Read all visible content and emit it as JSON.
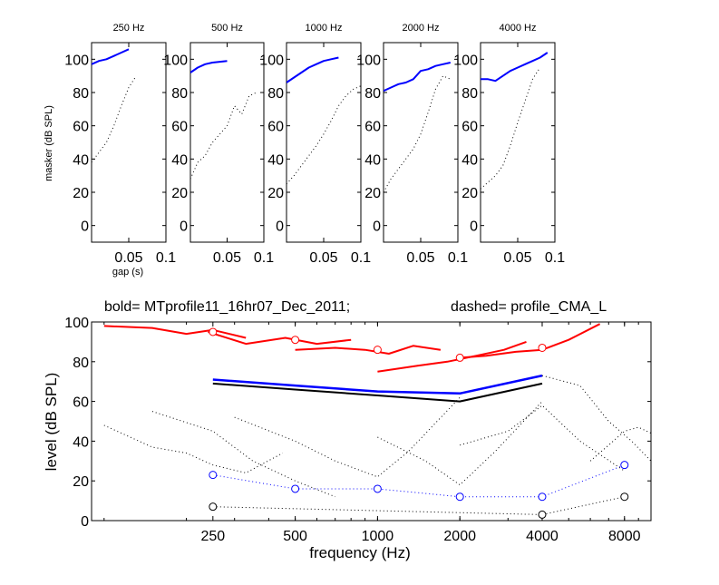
{
  "figure": {
    "top_ylabel": "masker (dB SPL)",
    "top_xlabel": "gap (s)",
    "bottom_title_left": "bold= MTprofile11_16hr07_Dec_2011;",
    "bottom_title_right": "dashed=  profile_CMA_L",
    "bottom_xlabel": "frequency (Hz)",
    "bottom_ylabel": "level (dB SPL)"
  },
  "chart_data": [
    {
      "type": "line",
      "title": "250 Hz",
      "xlabel": "gap (s)",
      "ylabel": "masker (dB SPL)",
      "xlim": [
        0,
        0.1
      ],
      "ylim": [
        -10,
        110
      ],
      "xticks": [
        0.05,
        0.1
      ],
      "xtick_labels": [
        "0.05",
        "0.1"
      ],
      "yticks": [
        0,
        20,
        40,
        60,
        80,
        100
      ],
      "ytick_labels": [
        "0",
        "20",
        "40",
        "60",
        "80",
        "100"
      ],
      "series": [
        {
          "style": "solid",
          "color": "#0000ff",
          "x": [
            0.0,
            0.01,
            0.02,
            0.03,
            0.04,
            0.05
          ],
          "y": [
            97,
            99,
            100,
            102,
            104,
            106
          ]
        },
        {
          "style": "dotted",
          "color": "#000000",
          "x": [
            0.0,
            0.01,
            0.02,
            0.03,
            0.04,
            0.05,
            0.06
          ],
          "y": [
            38,
            44,
            50,
            60,
            72,
            83,
            90
          ]
        }
      ]
    },
    {
      "type": "line",
      "title": "500 Hz",
      "xlim": [
        0,
        0.1
      ],
      "ylim": [
        -10,
        110
      ],
      "xticks": [
        0.05,
        0.1
      ],
      "xtick_labels": [
        "0.05",
        "0.1"
      ],
      "yticks": [
        0,
        20,
        40,
        60,
        80,
        100
      ],
      "ytick_labels": [
        "0",
        "20",
        "40",
        "60",
        "80",
        "100"
      ],
      "series": [
        {
          "style": "solid",
          "color": "#0000ff",
          "x": [
            0.0,
            0.01,
            0.02,
            0.03,
            0.04,
            0.05
          ],
          "y": [
            92,
            95,
            97,
            98,
            98.5,
            99
          ]
        },
        {
          "style": "dotted",
          "color": "#000000",
          "x": [
            0.0,
            0.01,
            0.02,
            0.03,
            0.04,
            0.05,
            0.06,
            0.07,
            0.08,
            0.09
          ],
          "y": [
            28,
            38,
            42,
            50,
            55,
            60,
            72,
            67,
            78,
            80
          ]
        }
      ]
    },
    {
      "type": "line",
      "title": "1000 Hz",
      "xlim": [
        0,
        0.1
      ],
      "ylim": [
        -10,
        110
      ],
      "xticks": [
        0.05,
        0.1
      ],
      "xtick_labels": [
        "0.05",
        "0.1"
      ],
      "yticks": [
        0,
        20,
        40,
        60,
        80,
        100
      ],
      "ytick_labels": [
        "0",
        "20",
        "40",
        "60",
        "80",
        "100"
      ],
      "series": [
        {
          "style": "solid",
          "color": "#0000ff",
          "x": [
            0.0,
            0.01,
            0.02,
            0.03,
            0.04,
            0.05,
            0.06,
            0.07
          ],
          "y": [
            86,
            89,
            92,
            95,
            97,
            99,
            100,
            101
          ]
        },
        {
          "style": "dotted",
          "color": "#000000",
          "x": [
            0.0,
            0.01,
            0.02,
            0.03,
            0.04,
            0.05,
            0.06,
            0.07,
            0.08,
            0.09,
            0.1
          ],
          "y": [
            25,
            30,
            36,
            42,
            48,
            55,
            63,
            72,
            78,
            82,
            84
          ]
        }
      ]
    },
    {
      "type": "line",
      "title": "2000 Hz",
      "xlim": [
        0,
        0.1
      ],
      "ylim": [
        -10,
        110
      ],
      "xticks": [
        0.05,
        0.1
      ],
      "xtick_labels": [
        "0.05",
        "0.1"
      ],
      "yticks": [
        0,
        20,
        40,
        60,
        80,
        100
      ],
      "ytick_labels": [
        "0",
        "20",
        "40",
        "60",
        "80",
        "100"
      ],
      "series": [
        {
          "style": "solid",
          "color": "#0000ff",
          "x": [
            0.0,
            0.01,
            0.02,
            0.03,
            0.04,
            0.05,
            0.06,
            0.07,
            0.08,
            0.09
          ],
          "y": [
            81,
            83,
            85,
            86,
            88,
            93,
            94,
            96,
            97,
            98
          ]
        },
        {
          "style": "dotted",
          "color": "#000000",
          "x": [
            0.0,
            0.01,
            0.02,
            0.03,
            0.04,
            0.05,
            0.06,
            0.07,
            0.08,
            0.09
          ],
          "y": [
            20,
            28,
            34,
            40,
            46,
            55,
            68,
            82,
            90,
            88
          ]
        }
      ]
    },
    {
      "type": "line",
      "title": "4000 Hz",
      "xlim": [
        0,
        0.1
      ],
      "ylim": [
        -10,
        110
      ],
      "xticks": [
        0.05,
        0.1
      ],
      "xtick_labels": [
        "0.05",
        "0.1"
      ],
      "yticks": [
        0,
        20,
        40,
        60,
        80,
        100
      ],
      "ytick_labels": [
        "0",
        "20",
        "40",
        "60",
        "80",
        "100"
      ],
      "series": [
        {
          "style": "solid",
          "color": "#0000ff",
          "x": [
            0.0,
            0.01,
            0.02,
            0.03,
            0.04,
            0.05,
            0.06,
            0.07,
            0.08,
            0.09
          ],
          "y": [
            88,
            88,
            87,
            90,
            93,
            95,
            97,
            99,
            101,
            104
          ]
        },
        {
          "style": "dotted",
          "color": "#000000",
          "x": [
            0.0,
            0.01,
            0.02,
            0.03,
            0.04,
            0.05,
            0.06,
            0.07,
            0.08
          ],
          "y": [
            22,
            26,
            30,
            36,
            48,
            62,
            75,
            88,
            95
          ]
        }
      ]
    },
    {
      "type": "line",
      "xlabel": "frequency (Hz)",
      "ylabel": "level (dB SPL)",
      "xscale": "log",
      "xlim": [
        90,
        10000
      ],
      "ylim": [
        0,
        100
      ],
      "xticks": [
        250,
        500,
        1000,
        2000,
        4000,
        8000
      ],
      "xtick_labels": [
        "250",
        "500",
        "1000",
        "2000",
        "4000",
        "8000"
      ],
      "yticks": [
        0,
        20,
        40,
        60,
        80,
        100
      ],
      "ytick_labels": [
        "0",
        "20",
        "40",
        "60",
        "80",
        "100"
      ],
      "series": [
        {
          "style": "solid",
          "color": "#ff0000",
          "width": 2,
          "x": [
            100,
            150,
            200,
            250,
            330
          ],
          "y": [
            98,
            97,
            94,
            96,
            92
          ]
        },
        {
          "style": "solid",
          "color": "#ff0000",
          "width": 2,
          "x": [
            240,
            330,
            460,
            600,
            800
          ],
          "y": [
            95,
            89,
            92,
            89,
            91
          ]
        },
        {
          "style": "solid",
          "color": "#ff0000",
          "width": 2,
          "x": [
            500,
            700,
            900,
            1100,
            1350,
            1700
          ],
          "y": [
            86,
            87,
            86,
            84,
            88,
            86
          ]
        },
        {
          "style": "solid",
          "color": "#ff0000",
          "width": 2,
          "x": [
            1000,
            1400,
            1800,
            2300,
            2900,
            3500
          ],
          "y": [
            75,
            78,
            80,
            83,
            86,
            90
          ]
        },
        {
          "style": "solid",
          "color": "#ff0000",
          "width": 2,
          "x": [
            2000,
            2500,
            3200,
            4000,
            5000,
            6500
          ],
          "y": [
            82,
            83,
            85,
            86,
            91,
            99
          ]
        },
        {
          "style": "solid",
          "color": "#0000ff",
          "width": 2.5,
          "x": [
            250,
            500,
            1000,
            2000,
            4000
          ],
          "y": [
            71,
            68,
            65,
            64,
            73
          ]
        },
        {
          "style": "solid",
          "color": "#000000",
          "width": 2,
          "x": [
            250,
            500,
            1000,
            2000,
            4000
          ],
          "y": [
            69,
            66,
            63,
            60,
            69
          ]
        },
        {
          "style": "dotted",
          "color": "#0000ff",
          "width": 1,
          "markers": "circle",
          "x": [
            250,
            500,
            1000,
            2000,
            4000,
            8000
          ],
          "y": [
            23,
            16,
            16,
            12,
            12,
            28
          ]
        },
        {
          "style": "dotted",
          "color": "#000000",
          "width": 1,
          "markers": "circle",
          "x": [
            250,
            4000,
            8000
          ],
          "y": [
            7,
            3,
            12
          ]
        },
        {
          "style": "none",
          "color": "#ff0000",
          "markers": "circle",
          "x": [
            250,
            500,
            1000,
            2000,
            4000
          ],
          "y": [
            95,
            91,
            86,
            82,
            87
          ]
        },
        {
          "style": "dotted",
          "color": "#000000",
          "width": 1,
          "x": [
            100,
            150,
            200,
            250,
            330,
            450
          ],
          "y": [
            48,
            37,
            34,
            28,
            24,
            34
          ]
        },
        {
          "style": "dotted",
          "color": "#000000",
          "width": 1,
          "x": [
            150,
            250,
            350,
            500,
            700
          ],
          "y": [
            55,
            45,
            30,
            20,
            12
          ]
        },
        {
          "style": "dotted",
          "color": "#000000",
          "width": 1,
          "x": [
            300,
            500,
            700,
            1000,
            1300,
            2000
          ],
          "y": [
            52,
            40,
            30,
            22,
            35,
            62
          ]
        },
        {
          "style": "dotted",
          "color": "#000000",
          "width": 1,
          "x": [
            1000,
            1500,
            2000,
            2700,
            4000
          ],
          "y": [
            42,
            30,
            18,
            35,
            60
          ]
        },
        {
          "style": "dotted",
          "color": "#000000",
          "width": 1,
          "x": [
            2000,
            3000,
            4000,
            5500,
            8000
          ],
          "y": [
            38,
            45,
            58,
            40,
            25
          ]
        },
        {
          "style": "dotted",
          "color": "#000000",
          "width": 1,
          "x": [
            4000,
            5500,
            7000,
            8500,
            10000
          ],
          "y": [
            73,
            68,
            50,
            40,
            30
          ]
        },
        {
          "style": "dotted",
          "color": "#000000",
          "width": 1,
          "x": [
            6000,
            7000,
            8000,
            9000,
            10000
          ],
          "y": [
            30,
            38,
            45,
            47,
            44
          ]
        }
      ]
    }
  ]
}
